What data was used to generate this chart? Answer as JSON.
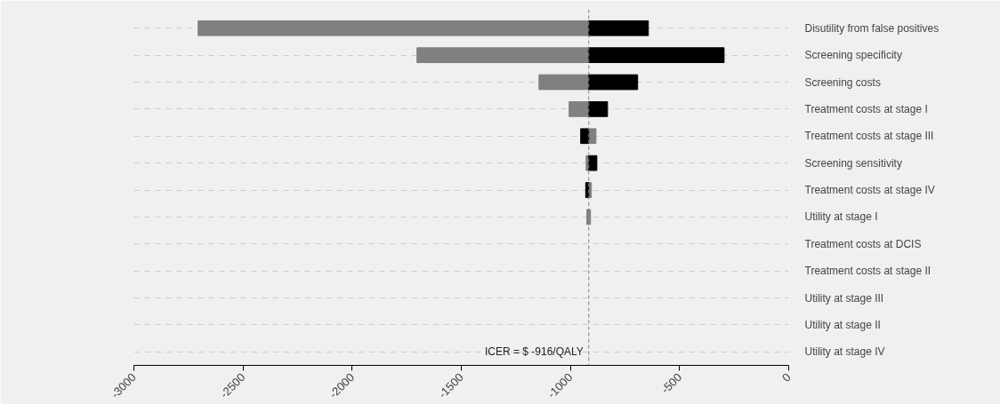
{
  "chart_data": {
    "type": "bar",
    "orientation": "horizontal",
    "categories": [
      "Disutility from false positives",
      "Screening specificity",
      "Screening costs",
      "Treatment costs at stage I",
      "Treatment costs at stage III",
      "Screening sensitivity",
      "Treatment costs at stage IV",
      "Utility at stage I",
      "Treatment costs at DCIS",
      "Treatment costs at stage II",
      "Utility at stage III",
      "Utility at stage II",
      "Utility at stage IV"
    ],
    "series": [
      {
        "color": "#808080",
        "base": [
          -916,
          -916,
          -916,
          -916,
          -916,
          -916,
          -916,
          -925,
          null,
          null,
          null,
          null,
          null
        ],
        "values": [
          -1790,
          -787,
          -228,
          -90,
          33,
          -12,
          12,
          17,
          null,
          null,
          null,
          null,
          null
        ]
      },
      {
        "color": "#000000",
        "base": [
          -916,
          -916,
          -916,
          -916,
          -916,
          -916,
          -916,
          null,
          null,
          null,
          null,
          null,
          null
        ],
        "values": [
          273,
          620,
          224,
          86,
          -37,
          37,
          -14,
          null,
          null,
          null,
          null,
          null,
          null
        ]
      }
    ],
    "xlim": [
      -3000,
      0
    ],
    "xticks": [
      -3000,
      -2500,
      -2000,
      -1500,
      -1000,
      -500,
      0
    ],
    "ref_lines": [
      {
        "axis": "x",
        "value": -916,
        "label": "ICER = $ -916/QALY",
        "line_style": "dashed",
        "color": "#808080"
      }
    ],
    "grid": "y"
  }
}
